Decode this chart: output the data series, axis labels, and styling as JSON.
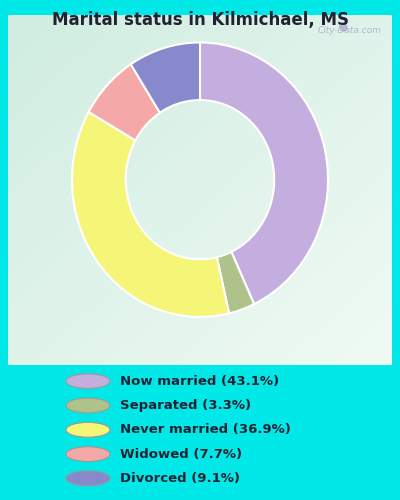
{
  "title": "Marital status in Kilmichael, MS",
  "slices": [
    43.1,
    3.3,
    36.9,
    7.7,
    9.1
  ],
  "labels": [
    "Now married (43.1%)",
    "Separated (3.3%)",
    "Never married (36.9%)",
    "Widowed (7.7%)",
    "Divorced (9.1%)"
  ],
  "colors": [
    "#c4aee0",
    "#afc28a",
    "#f5f577",
    "#f5a8a8",
    "#8888cc"
  ],
  "bg_color": "#00e8e8",
  "chart_bg_tl": "#d6ede0",
  "chart_bg_br": "#e8f5f0",
  "watermark": "City-Data.com",
  "start_angle": 90,
  "donut_outer": 1.0,
  "donut_width": 0.42,
  "title_color": "#222233",
  "legend_text_color": "#222233",
  "edge_color": "#ffffff",
  "edge_linewidth": 1.5
}
